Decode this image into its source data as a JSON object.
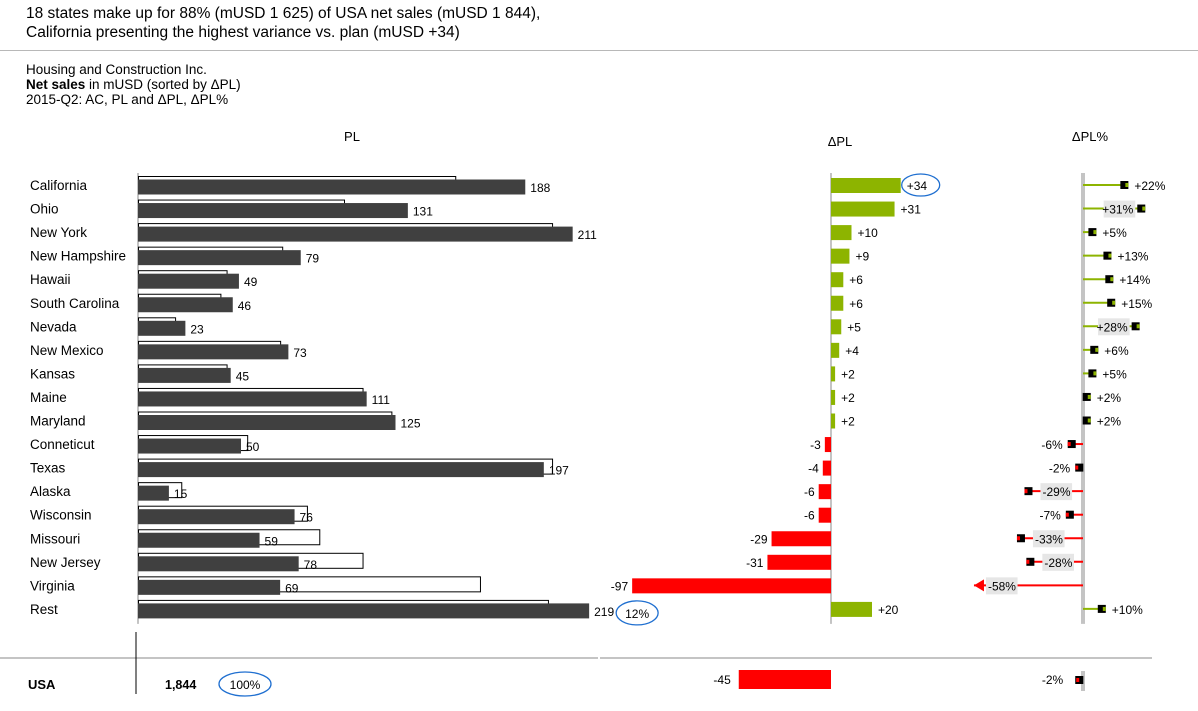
{
  "headline": {
    "line1": "18 states make up for 88% (mUSD 1 625) of USA net sales (mUSD 1 844),",
    "line2": "California presenting the highest variance vs. plan (mUSD +34)"
  },
  "subtitle": {
    "company": "Housing and Construction Inc.",
    "measure_bold": "Net sales",
    "measure_rest": " in mUSD (sorted by ΔPL)",
    "period": "2015-Q2: AC, PL and ΔPL, ΔPL%"
  },
  "panel_titles": {
    "pl": "PL",
    "dpl": "ΔPL",
    "dplpct": "ΔPL%"
  },
  "colors": {
    "ac_bar": "#404040",
    "positive": "#8db400",
    "negative": "#ff0000",
    "highlight_circle": "#1f6fd0",
    "label_bg": "#e6e6e6"
  },
  "chart_data": {
    "type": "bar",
    "title": "",
    "categories": [
      "California",
      "Ohio",
      "New York",
      "New Hampshire",
      "Hawaii",
      "South Carolina",
      "Nevada",
      "New Mexico",
      "Kansas",
      "Maine",
      "Maryland",
      "Conneticut",
      "Texas",
      "Alaska",
      "Wisconsin",
      "Missouri",
      "New Jersey",
      "Virginia",
      "Rest"
    ],
    "series": [
      {
        "name": "AC",
        "values": [
          188,
          131,
          211,
          79,
          49,
          46,
          23,
          73,
          45,
          111,
          125,
          50,
          197,
          15,
          76,
          59,
          78,
          69,
          219
        ]
      },
      {
        "name": "PL",
        "values": [
          154,
          100,
          201,
          70,
          43,
          40,
          18,
          69,
          43,
          109,
          123,
          53,
          201,
          21,
          82,
          88,
          109,
          166,
          199
        ]
      },
      {
        "name": "ΔPL",
        "values": [
          34,
          31,
          10,
          9,
          6,
          6,
          5,
          4,
          2,
          2,
          2,
          -3,
          -4,
          -6,
          -6,
          -29,
          -31,
          -97,
          20
        ]
      },
      {
        "name": "ΔPL%",
        "values": [
          22,
          31,
          5,
          13,
          14,
          15,
          28,
          6,
          5,
          2,
          2,
          -6,
          -2,
          -29,
          -7,
          -33,
          -28,
          -58,
          10
        ]
      }
    ],
    "value_labels": [
      "188",
      "131",
      "211",
      "79",
      "49",
      "46",
      "23",
      "73",
      "45",
      "111",
      "125",
      "50",
      "197",
      "15",
      "76",
      "59",
      "78",
      "69",
      "219"
    ],
    "dpl_labels": [
      "+34",
      "+31",
      "+10",
      "+9",
      "+6",
      "+6",
      "+5",
      "+4",
      "+2",
      "+2",
      "+2",
      "-3",
      "-4",
      "-6",
      "-6",
      "-29",
      "-31",
      "-97",
      "+20"
    ],
    "dplpct_labels": [
      "+22%",
      "+31%",
      "+5%",
      "+13%",
      "+14%",
      "+15%",
      "+28%",
      "+6%",
      "+5%",
      "+2%",
      "+2%",
      "-6%",
      "-2%",
      "-29%",
      "-7%",
      "-33%",
      "-28%",
      "-58%",
      "+10%"
    ],
    "dplpct_label_inside": [
      false,
      true,
      false,
      false,
      false,
      false,
      true,
      false,
      false,
      false,
      false,
      false,
      false,
      true,
      false,
      true,
      true,
      true,
      false
    ],
    "highlighted_dpl_index": 0,
    "rest_share_label": "12%",
    "total": {
      "label": "USA",
      "ac": "1,844",
      "share": "100%",
      "dpl": -45,
      "dpl_label": "-45",
      "dplpct": -2,
      "dplpct_label": "-2%"
    },
    "legend": "none",
    "grid": false
  }
}
